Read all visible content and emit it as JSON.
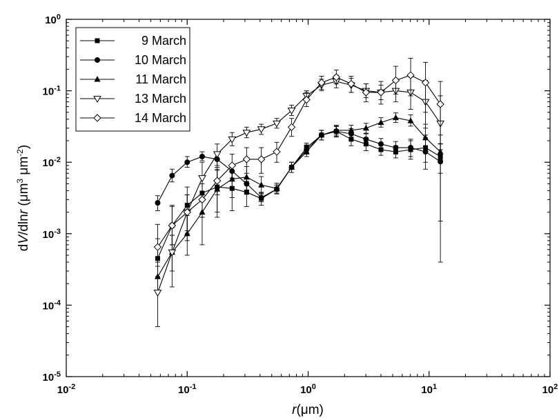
{
  "chart_data": {
    "type": "line",
    "xscale": "log",
    "yscale": "log",
    "xlim": [
      0.01,
      100
    ],
    "ylim": [
      1e-05,
      1
    ],
    "xlabel": {
      "italic": "r",
      "rest": "(μm)"
    },
    "ylabel": {
      "prefix": "d",
      "italic1": "V",
      "mid": "/dln",
      "italic2": "r",
      "units": " (μm",
      "sup1": "3",
      "units2": " μm",
      "sup2": "-2",
      "close": ")"
    },
    "x_ticks": [
      {
        "value": 0.01,
        "base": "10",
        "exp": "-2"
      },
      {
        "value": 0.1,
        "base": "10",
        "exp": "-1"
      },
      {
        "value": 1,
        "base": "10",
        "exp": "0"
      },
      {
        "value": 10,
        "base": "10",
        "exp": "1"
      },
      {
        "value": 100,
        "base": "10",
        "exp": "2"
      }
    ],
    "y_ticks": [
      {
        "value": 1e-05,
        "base": "10",
        "exp": "-5"
      },
      {
        "value": 0.0001,
        "base": "10",
        "exp": "-4"
      },
      {
        "value": 0.001,
        "base": "10",
        "exp": "-3"
      },
      {
        "value": 0.01,
        "base": "10",
        "exp": "-2"
      },
      {
        "value": 0.1,
        "base": "10",
        "exp": "-1"
      },
      {
        "value": 1,
        "base": "10",
        "exp": "0"
      }
    ],
    "legend_position": "top-left",
    "x": [
      0.057,
      0.075,
      0.1,
      0.133,
      0.177,
      0.235,
      0.31,
      0.41,
      0.55,
      0.73,
      0.97,
      1.29,
      1.71,
      2.27,
      3.01,
      4.0,
      5.3,
      7.04,
      9.34,
      12.4
    ],
    "series": [
      {
        "name": "9 March",
        "marker": "square",
        "values": [
          0.00045,
          0.0013,
          0.0025,
          0.0037,
          0.0045,
          0.0043,
          0.0038,
          0.0031,
          0.0042,
          0.0085,
          0.016,
          0.024,
          0.027,
          0.021,
          0.018,
          0.015,
          0.014,
          0.015,
          0.016,
          0.012
        ],
        "err_lo": [
          0.0002,
          0.0006,
          0.0015,
          0.002,
          0.0025,
          0.0022,
          0.0014,
          0.0006,
          0.0005,
          0.0013,
          0.0022,
          0.0035,
          0.0045,
          0.004,
          0.0035,
          0.0025,
          0.0025,
          0.004,
          0.006,
          0.005
        ],
        "err_hi": [
          0.0004,
          0.0011,
          0.002,
          0.0025,
          0.0035,
          0.003,
          0.0016,
          0.0007,
          0.0006,
          0.0015,
          0.0025,
          0.004,
          0.005,
          0.0045,
          0.004,
          0.003,
          0.003,
          0.005,
          0.008,
          0.006
        ]
      },
      {
        "name": "10 March",
        "marker": "circle",
        "values": [
          0.0027,
          0.0065,
          0.01,
          0.012,
          0.011,
          0.0075,
          0.005,
          0.0032,
          0.0042,
          0.0085,
          0.015,
          0.024,
          0.027,
          0.025,
          0.021,
          0.018,
          0.016,
          0.016,
          0.014,
          0.0102
        ],
        "err_lo": [
          0.0006,
          0.0012,
          0.0015,
          0.0015,
          0.002,
          0.0015,
          0.0009,
          0.0004,
          0.0005,
          0.0013,
          0.002,
          0.0035,
          0.004,
          0.004,
          0.0035,
          0.003,
          0.003,
          0.004,
          0.006,
          0.0098
        ],
        "err_hi": [
          0.0007,
          0.0015,
          0.002,
          0.002,
          0.0025,
          0.0018,
          0.001,
          0.0005,
          0.0006,
          0.0015,
          0.0025,
          0.004,
          0.0045,
          0.0045,
          0.004,
          0.0035,
          0.0035,
          0.005,
          0.008,
          0.008
        ]
      },
      {
        "name": "11 March",
        "marker": "triangle-up",
        "values": [
          0.00025,
          0.00055,
          0.001,
          0.002,
          0.0042,
          0.0058,
          0.0062,
          0.0048,
          0.0043,
          0.0085,
          0.014,
          0.024,
          0.028,
          0.028,
          0.03,
          0.036,
          0.042,
          0.038,
          0.022,
          0.014
        ],
        "err_lo": [
          0.0001,
          0.00025,
          0.0005,
          0.0013,
          0.0025,
          0.0026,
          0.0022,
          0.0012,
          0.0007,
          0.0013,
          0.002,
          0.0035,
          0.004,
          0.004,
          0.0045,
          0.005,
          0.006,
          0.006,
          0.008,
          0.0125
        ],
        "err_hi": [
          0.00015,
          0.0004,
          0.0008,
          0.0018,
          0.0035,
          0.0035,
          0.0025,
          0.0015,
          0.0008,
          0.0015,
          0.0025,
          0.004,
          0.005,
          0.005,
          0.005,
          0.006,
          0.007,
          0.008,
          0.012,
          0.01
        ]
      },
      {
        "name": "13 March",
        "marker": "triangle-down-open",
        "values": [
          0.00015,
          0.00055,
          0.002,
          0.006,
          0.013,
          0.021,
          0.026,
          0.029,
          0.035,
          0.053,
          0.085,
          0.12,
          0.135,
          0.12,
          0.1,
          0.095,
          0.1,
          0.095,
          0.07,
          0.035
        ],
        "err_lo": [
          0.0001,
          0.00037,
          0.0012,
          0.003,
          0.0045,
          0.004,
          0.004,
          0.0045,
          0.005,
          0.008,
          0.013,
          0.02,
          0.025,
          0.025,
          0.02,
          0.02,
          0.03,
          0.04,
          0.04,
          0.024
        ],
        "err_hi": [
          0.0001,
          0.0004,
          0.0015,
          0.004,
          0.005,
          0.005,
          0.005,
          0.005,
          0.006,
          0.01,
          0.015,
          0.025,
          0.03,
          0.03,
          0.025,
          0.025,
          0.04,
          0.06,
          0.07,
          0.05
        ]
      },
      {
        "name": "14 March",
        "marker": "diamond-open",
        "values": [
          0.00065,
          0.0013,
          0.002,
          0.003,
          0.0055,
          0.009,
          0.011,
          0.011,
          0.014,
          0.031,
          0.075,
          0.13,
          0.155,
          0.125,
          0.095,
          0.095,
          0.14,
          0.165,
          0.13,
          0.065
        ],
        "err_lo": [
          0.0003,
          0.0006,
          0.0009,
          0.0013,
          0.002,
          0.003,
          0.004,
          0.004,
          0.004,
          0.008,
          0.015,
          0.025,
          0.03,
          0.03,
          0.025,
          0.03,
          0.05,
          0.08,
          0.08,
          0.05
        ],
        "err_hi": [
          0.0007,
          0.0012,
          0.0015,
          0.002,
          0.003,
          0.004,
          0.005,
          0.005,
          0.005,
          0.01,
          0.02,
          0.03,
          0.04,
          0.035,
          0.03,
          0.04,
          0.08,
          0.12,
          0.12,
          0.07
        ]
      }
    ]
  }
}
